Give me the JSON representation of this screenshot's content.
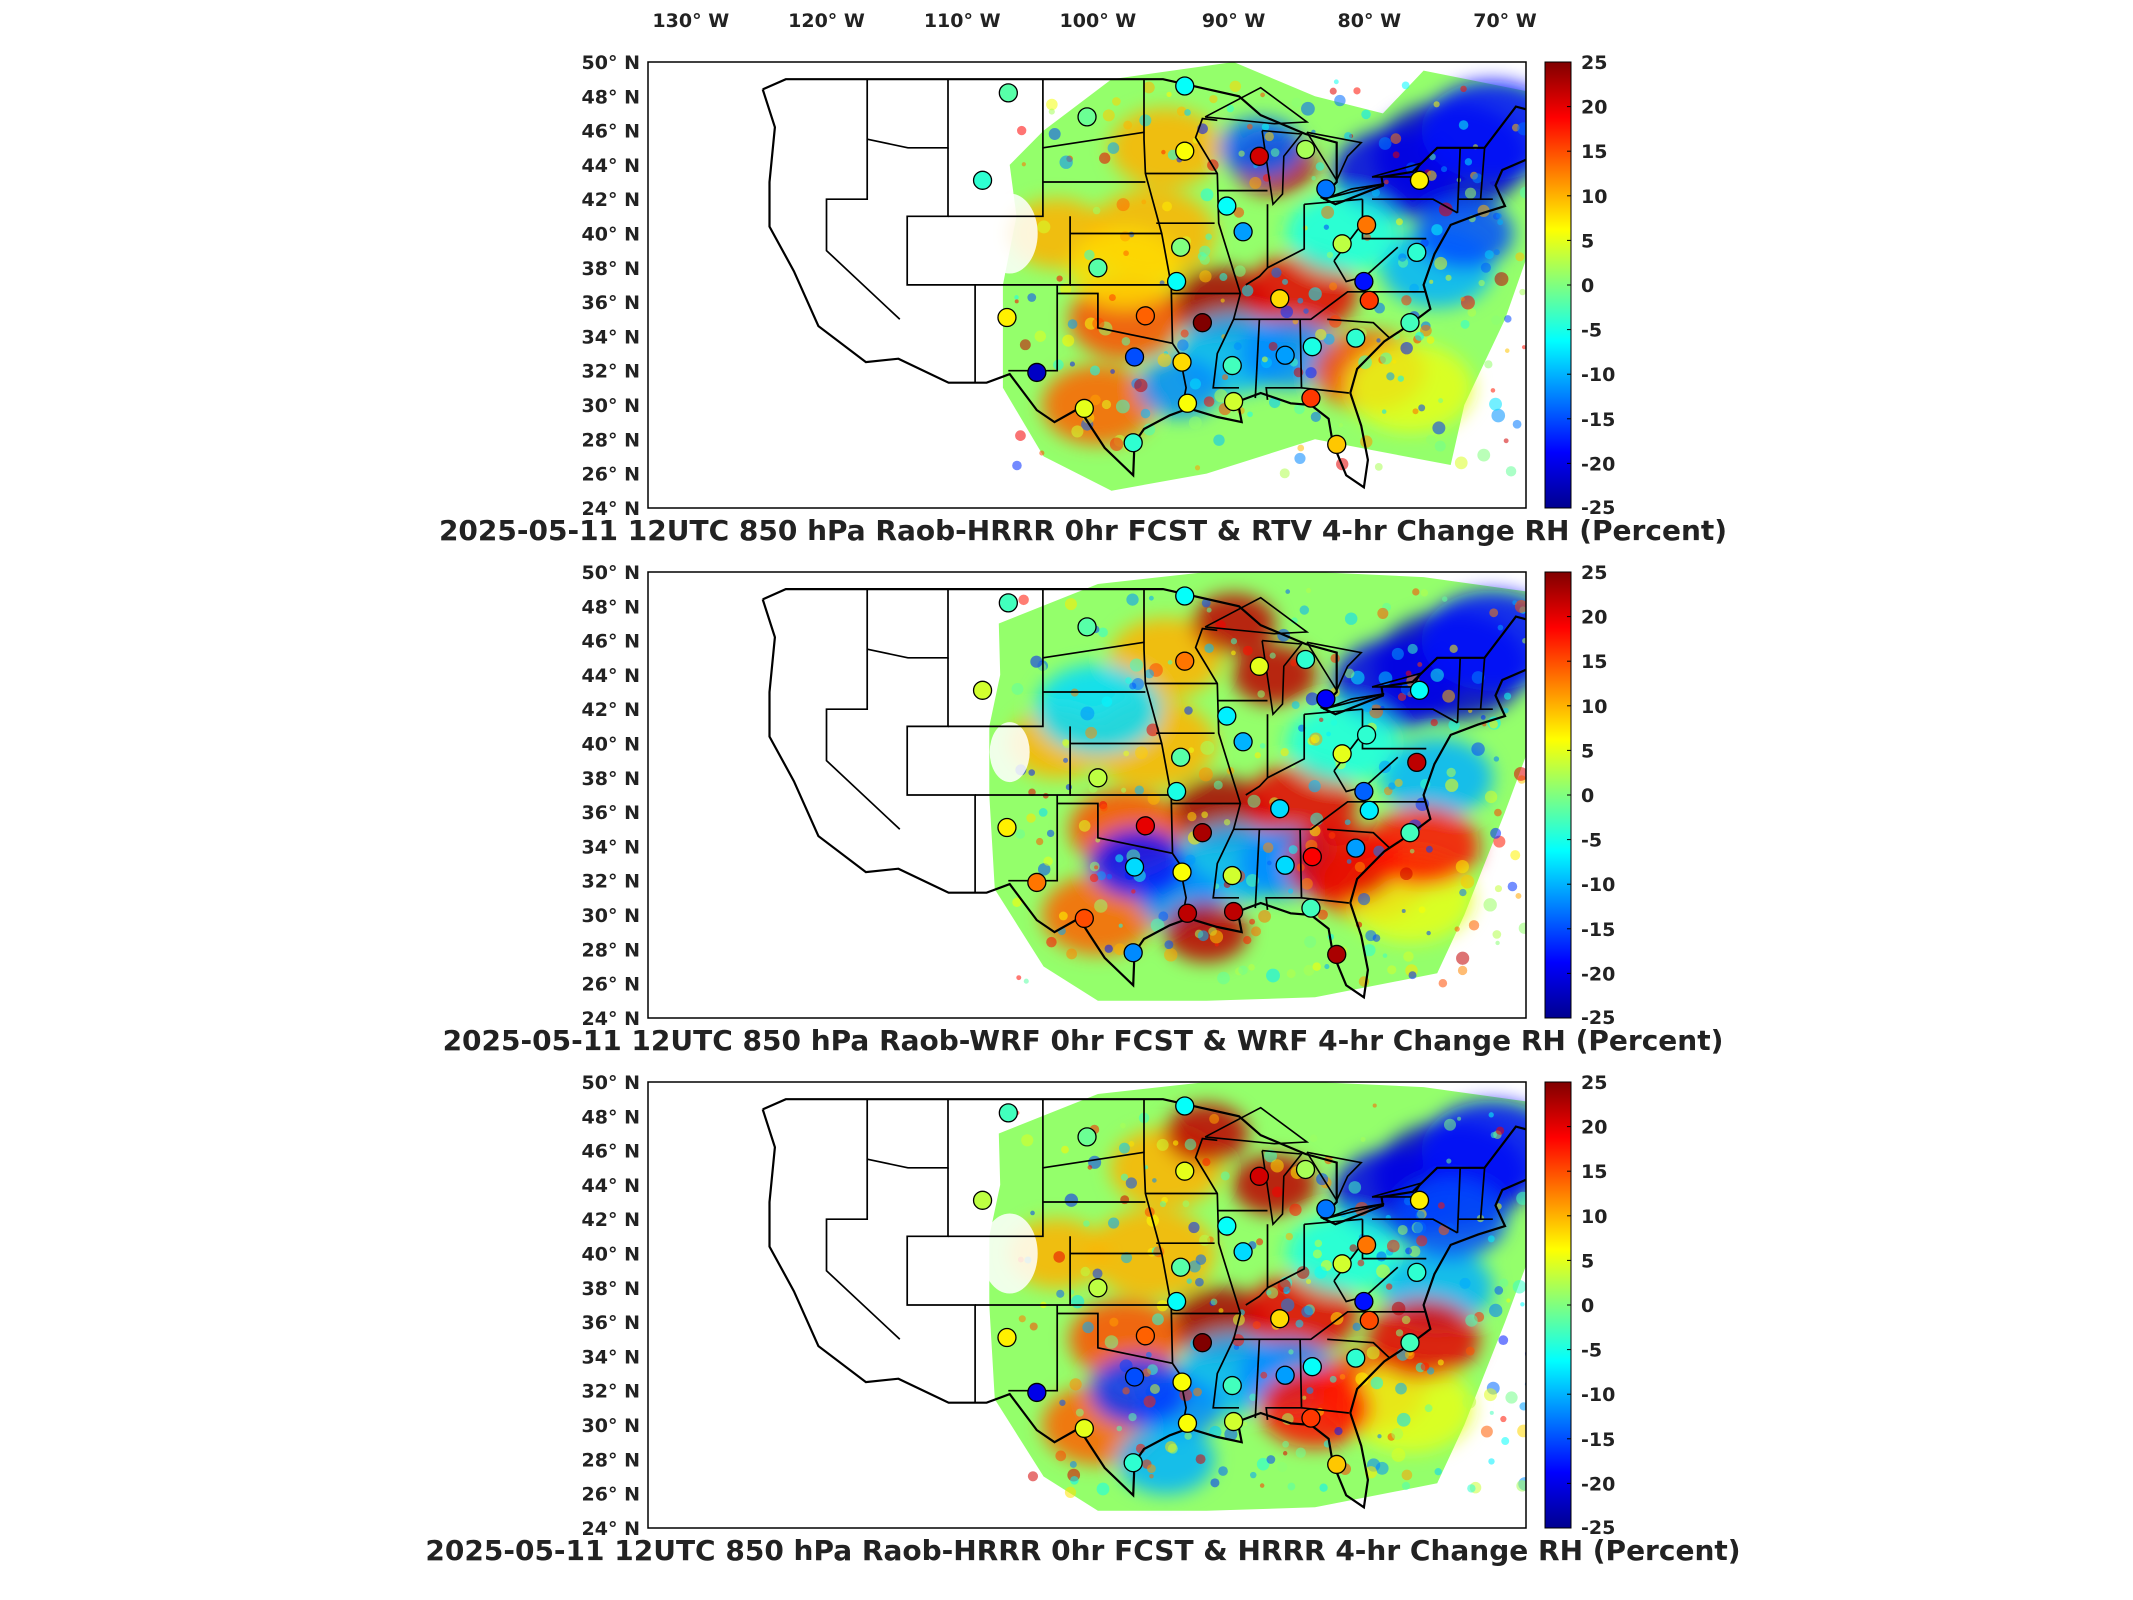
{
  "lon_labels": [
    "130° W",
    "120° W",
    "110° W",
    "100° W",
    "90° W",
    "80° W",
    "70° W"
  ],
  "lat_labels": [
    "50° N",
    "48° N",
    "46° N",
    "44° N",
    "42° N",
    "40° N",
    "38° N",
    "36° N",
    "34° N",
    "32° N",
    "30° N",
    "28° N",
    "26° N",
    "24° N"
  ],
  "colorbar_ticks": [
    "25",
    "20",
    "15",
    "10",
    "5",
    "0",
    "-5",
    "-10",
    "-15",
    "-20",
    "-25"
  ],
  "colorbar": {
    "min": -25,
    "max": 25,
    "colormap": "jet",
    "units": "Percent"
  },
  "panels": [
    {
      "id": "rtv",
      "title": "2025-05-11 12UTC 850 hPa Raob-HRRR 0hr FCST & RTV 4-hr Change RH (Percent)"
    },
    {
      "id": "wrf",
      "title": "2025-05-11 12UTC 850 hPa Raob-WRF 0hr FCST & WRF 4-hr Change RH (Percent)"
    },
    {
      "id": "hrrr",
      "title": "2025-05-11 12UTC 850 hPa Raob-HRRR 0hr FCST & HRRR 4-hr Change RH (Percent)"
    }
  ],
  "stations": [
    {
      "lon": -106.6,
      "lat": 48.2,
      "v": [
        -2,
        -3,
        -3
      ]
    },
    {
      "lon": -108.5,
      "lat": 43.1,
      "v": [
        -4,
        4,
        3
      ]
    },
    {
      "lon": -100.8,
      "lat": 46.8,
      "v": [
        -1,
        -2,
        -1
      ]
    },
    {
      "lon": -93.6,
      "lat": 48.6,
      "v": [
        -6,
        -6,
        -6
      ]
    },
    {
      "lon": -93.6,
      "lat": 44.8,
      "v": [
        6,
        13,
        5
      ]
    },
    {
      "lon": -88.1,
      "lat": 44.5,
      "v": [
        21,
        5,
        21
      ]
    },
    {
      "lon": -84.7,
      "lat": 44.9,
      "v": [
        2,
        -4,
        2
      ]
    },
    {
      "lon": -83.2,
      "lat": 42.6,
      "v": [
        -13,
        -19,
        -13
      ]
    },
    {
      "lon": -76.3,
      "lat": 43.1,
      "v": [
        7,
        -6,
        7
      ]
    },
    {
      "lon": -90.5,
      "lat": 41.6,
      "v": [
        -6,
        -7,
        -6
      ]
    },
    {
      "lon": -89.3,
      "lat": 40.1,
      "v": [
        -11,
        -10,
        -8
      ]
    },
    {
      "lon": -82.0,
      "lat": 39.4,
      "v": [
        3,
        5,
        4
      ]
    },
    {
      "lon": -80.2,
      "lat": 40.5,
      "v": [
        13,
        -4,
        13
      ]
    },
    {
      "lon": -76.5,
      "lat": 38.9,
      "v": [
        -4,
        22,
        -4
      ]
    },
    {
      "lon": -93.9,
      "lat": 39.2,
      "v": [
        0,
        -2,
        -2
      ]
    },
    {
      "lon": -100.0,
      "lat": 38.0,
      "v": [
        -2,
        3,
        3
      ]
    },
    {
      "lon": -94.2,
      "lat": 37.2,
      "v": [
        -6,
        -5,
        -6
      ]
    },
    {
      "lon": -96.5,
      "lat": 35.2,
      "v": [
        14,
        20,
        14
      ]
    },
    {
      "lon": -92.3,
      "lat": 34.8,
      "v": [
        25,
        23,
        25
      ]
    },
    {
      "lon": -86.6,
      "lat": 36.2,
      "v": [
        8,
        -8,
        8
      ]
    },
    {
      "lon": -80.0,
      "lat": 36.1,
      "v": [
        16,
        -7,
        15
      ]
    },
    {
      "lon": -80.4,
      "lat": 37.2,
      "v": [
        -18,
        -14,
        -18
      ]
    },
    {
      "lon": -106.7,
      "lat": 35.1,
      "v": [
        7,
        7,
        7
      ]
    },
    {
      "lon": -104.5,
      "lat": 31.9,
      "v": [
        -22,
        13,
        -20
      ]
    },
    {
      "lon": -97.3,
      "lat": 32.8,
      "v": [
        -15,
        -8,
        -15
      ]
    },
    {
      "lon": -93.8,
      "lat": 32.5,
      "v": [
        8,
        6,
        6
      ]
    },
    {
      "lon": -90.1,
      "lat": 32.3,
      "v": [
        -3,
        4,
        -3
      ]
    },
    {
      "lon": -86.2,
      "lat": 32.9,
      "v": [
        -11,
        -8,
        -11
      ]
    },
    {
      "lon": -84.2,
      "lat": 33.4,
      "v": [
        -5,
        19,
        -6
      ]
    },
    {
      "lon": -81.0,
      "lat": 33.9,
      "v": [
        -4,
        -11,
        -4
      ]
    },
    {
      "lon": -77.0,
      "lat": 34.8,
      "v": [
        -3,
        -3,
        -3
      ]
    },
    {
      "lon": -101.0,
      "lat": 29.8,
      "v": [
        5,
        15,
        5
      ]
    },
    {
      "lon": -93.4,
      "lat": 30.1,
      "v": [
        6,
        22,
        6
      ]
    },
    {
      "lon": -90.0,
      "lat": 30.2,
      "v": [
        4,
        22,
        4
      ]
    },
    {
      "lon": -84.3,
      "lat": 30.4,
      "v": [
        16,
        -3,
        16
      ]
    },
    {
      "lon": -97.4,
      "lat": 27.8,
      "v": [
        -4,
        -12,
        -4
      ]
    },
    {
      "lon": -82.4,
      "lat": 27.7,
      "v": [
        9,
        23,
        9
      ]
    }
  ]
}
